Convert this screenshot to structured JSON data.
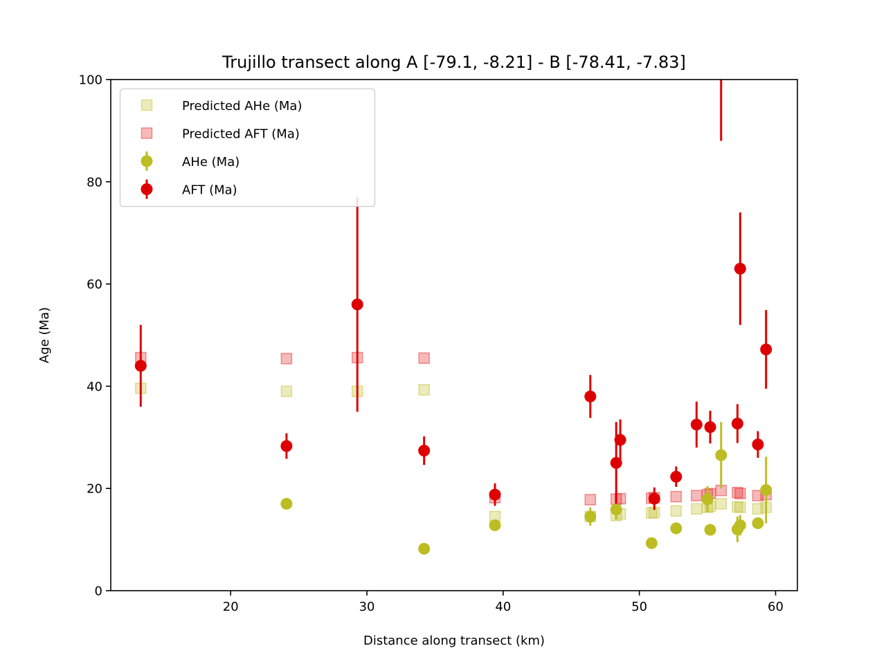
{
  "chart_data": {
    "type": "scatter",
    "title": "Trujillo transect along A [-79.1, -8.21] - B [-78.41, -7.83]",
    "xlabel": "Distance along transect (km)",
    "ylabel": "Age (Ma)",
    "xlim": [
      11.2,
      61.6
    ],
    "ylim": [
      0,
      100
    ],
    "xticks": [
      20,
      30,
      40,
      50,
      60
    ],
    "yticks": [
      0,
      20,
      40,
      60,
      80,
      100
    ],
    "grid": false,
    "legend_position": "upper-left",
    "series": [
      {
        "name": "Predicted AHe (Ma)",
        "marker": "square",
        "color": "#bcbd22",
        "alpha": 0.3,
        "points": [
          {
            "x": 13.4,
            "y": 39.6
          },
          {
            "x": 24.1,
            "y": 39.0
          },
          {
            "x": 29.3,
            "y": 39.0
          },
          {
            "x": 34.2,
            "y": 39.3
          },
          {
            "x": 39.4,
            "y": 14.5
          },
          {
            "x": 46.4,
            "y": 14.5
          },
          {
            "x": 48.3,
            "y": 14.7
          },
          {
            "x": 48.6,
            "y": 15.0
          },
          {
            "x": 50.9,
            "y": 15.2
          },
          {
            "x": 51.1,
            "y": 15.3
          },
          {
            "x": 52.7,
            "y": 15.6
          },
          {
            "x": 54.2,
            "y": 16.0
          },
          {
            "x": 55.0,
            "y": 16.3
          },
          {
            "x": 55.2,
            "y": 16.5
          },
          {
            "x": 56.0,
            "y": 17.0
          },
          {
            "x": 57.2,
            "y": 16.4
          },
          {
            "x": 57.4,
            "y": 16.3
          },
          {
            "x": 58.7,
            "y": 16.0
          },
          {
            "x": 59.3,
            "y": 16.3
          }
        ]
      },
      {
        "name": "Predicted AFT (Ma)",
        "marker": "square",
        "color": "#e31a1c",
        "alpha": 0.3,
        "points": [
          {
            "x": 13.4,
            "y": 45.6
          },
          {
            "x": 24.1,
            "y": 45.4
          },
          {
            "x": 29.3,
            "y": 45.6
          },
          {
            "x": 34.2,
            "y": 45.5
          },
          {
            "x": 39.4,
            "y": 18.2
          },
          {
            "x": 46.4,
            "y": 17.8
          },
          {
            "x": 48.3,
            "y": 17.9
          },
          {
            "x": 48.6,
            "y": 18.0
          },
          {
            "x": 50.9,
            "y": 18.1
          },
          {
            "x": 51.1,
            "y": 18.2
          },
          {
            "x": 52.7,
            "y": 18.4
          },
          {
            "x": 54.2,
            "y": 18.6
          },
          {
            "x": 55.0,
            "y": 18.8
          },
          {
            "x": 55.2,
            "y": 19.0
          },
          {
            "x": 56.0,
            "y": 19.6
          },
          {
            "x": 57.2,
            "y": 19.2
          },
          {
            "x": 57.4,
            "y": 19.0
          },
          {
            "x": 58.7,
            "y": 18.6
          },
          {
            "x": 59.3,
            "y": 18.8
          }
        ]
      },
      {
        "name": "AHe (Ma)",
        "marker": "circle",
        "color": "#bcbd22",
        "points": [
          {
            "x": 24.1,
            "y": 17.0,
            "err": 0.5
          },
          {
            "x": 34.2,
            "y": 8.2,
            "err": 0.5
          },
          {
            "x": 39.4,
            "y": 12.8,
            "err": 0.5
          },
          {
            "x": 46.4,
            "y": 14.5,
            "err": 1.8
          },
          {
            "x": 48.3,
            "y": 15.9,
            "err": 2.0
          },
          {
            "x": 50.9,
            "y": 9.3,
            "err": 0.5
          },
          {
            "x": 52.7,
            "y": 12.2,
            "err": 0.5
          },
          {
            "x": 55.0,
            "y": 17.9,
            "err": 2.5
          },
          {
            "x": 55.2,
            "y": 11.9,
            "err": 0.5
          },
          {
            "x": 56.0,
            "y": 26.5,
            "err": 6.5
          },
          {
            "x": 57.2,
            "y": 12.0,
            "err": 2.5
          },
          {
            "x": 57.4,
            "y": 12.8,
            "err": 2.0
          },
          {
            "x": 58.7,
            "y": 13.2,
            "err": 0.8
          },
          {
            "x": 59.3,
            "y": 19.7,
            "err": 6.5
          }
        ]
      },
      {
        "name": "AFT (Ma)",
        "marker": "circle",
        "color": "#dd0000",
        "points": [
          {
            "x": 13.4,
            "y": 44.0,
            "err": 8.0
          },
          {
            "x": 24.1,
            "y": 28.3,
            "err": 2.5
          },
          {
            "x": 29.3,
            "y": 56.0,
            "err": 21.0
          },
          {
            "x": 34.2,
            "y": 27.4,
            "err": 2.8
          },
          {
            "x": 39.4,
            "y": 18.8,
            "err": 2.2
          },
          {
            "x": 46.4,
            "y": 38.0,
            "err": 4.2
          },
          {
            "x": 48.3,
            "y": 25.0,
            "err": 8.0
          },
          {
            "x": 48.6,
            "y": 29.5,
            "err": 4.0
          },
          {
            "x": 51.1,
            "y": 18.0,
            "err": 2.2
          },
          {
            "x": 52.7,
            "y": 22.3,
            "err": 2.0
          },
          {
            "x": 54.2,
            "y": 32.5,
            "err": 4.5
          },
          {
            "x": 55.2,
            "y": 32.0,
            "err": 3.2
          },
          {
            "x": 56.0,
            "y": 102.0,
            "err": 14.0
          },
          {
            "x": 57.2,
            "y": 32.7,
            "err": 3.8
          },
          {
            "x": 57.4,
            "y": 63.0,
            "err": 11.0
          },
          {
            "x": 58.7,
            "y": 28.6,
            "err": 2.6
          },
          {
            "x": 59.3,
            "y": 47.2,
            "err": 7.7
          }
        ]
      }
    ]
  }
}
